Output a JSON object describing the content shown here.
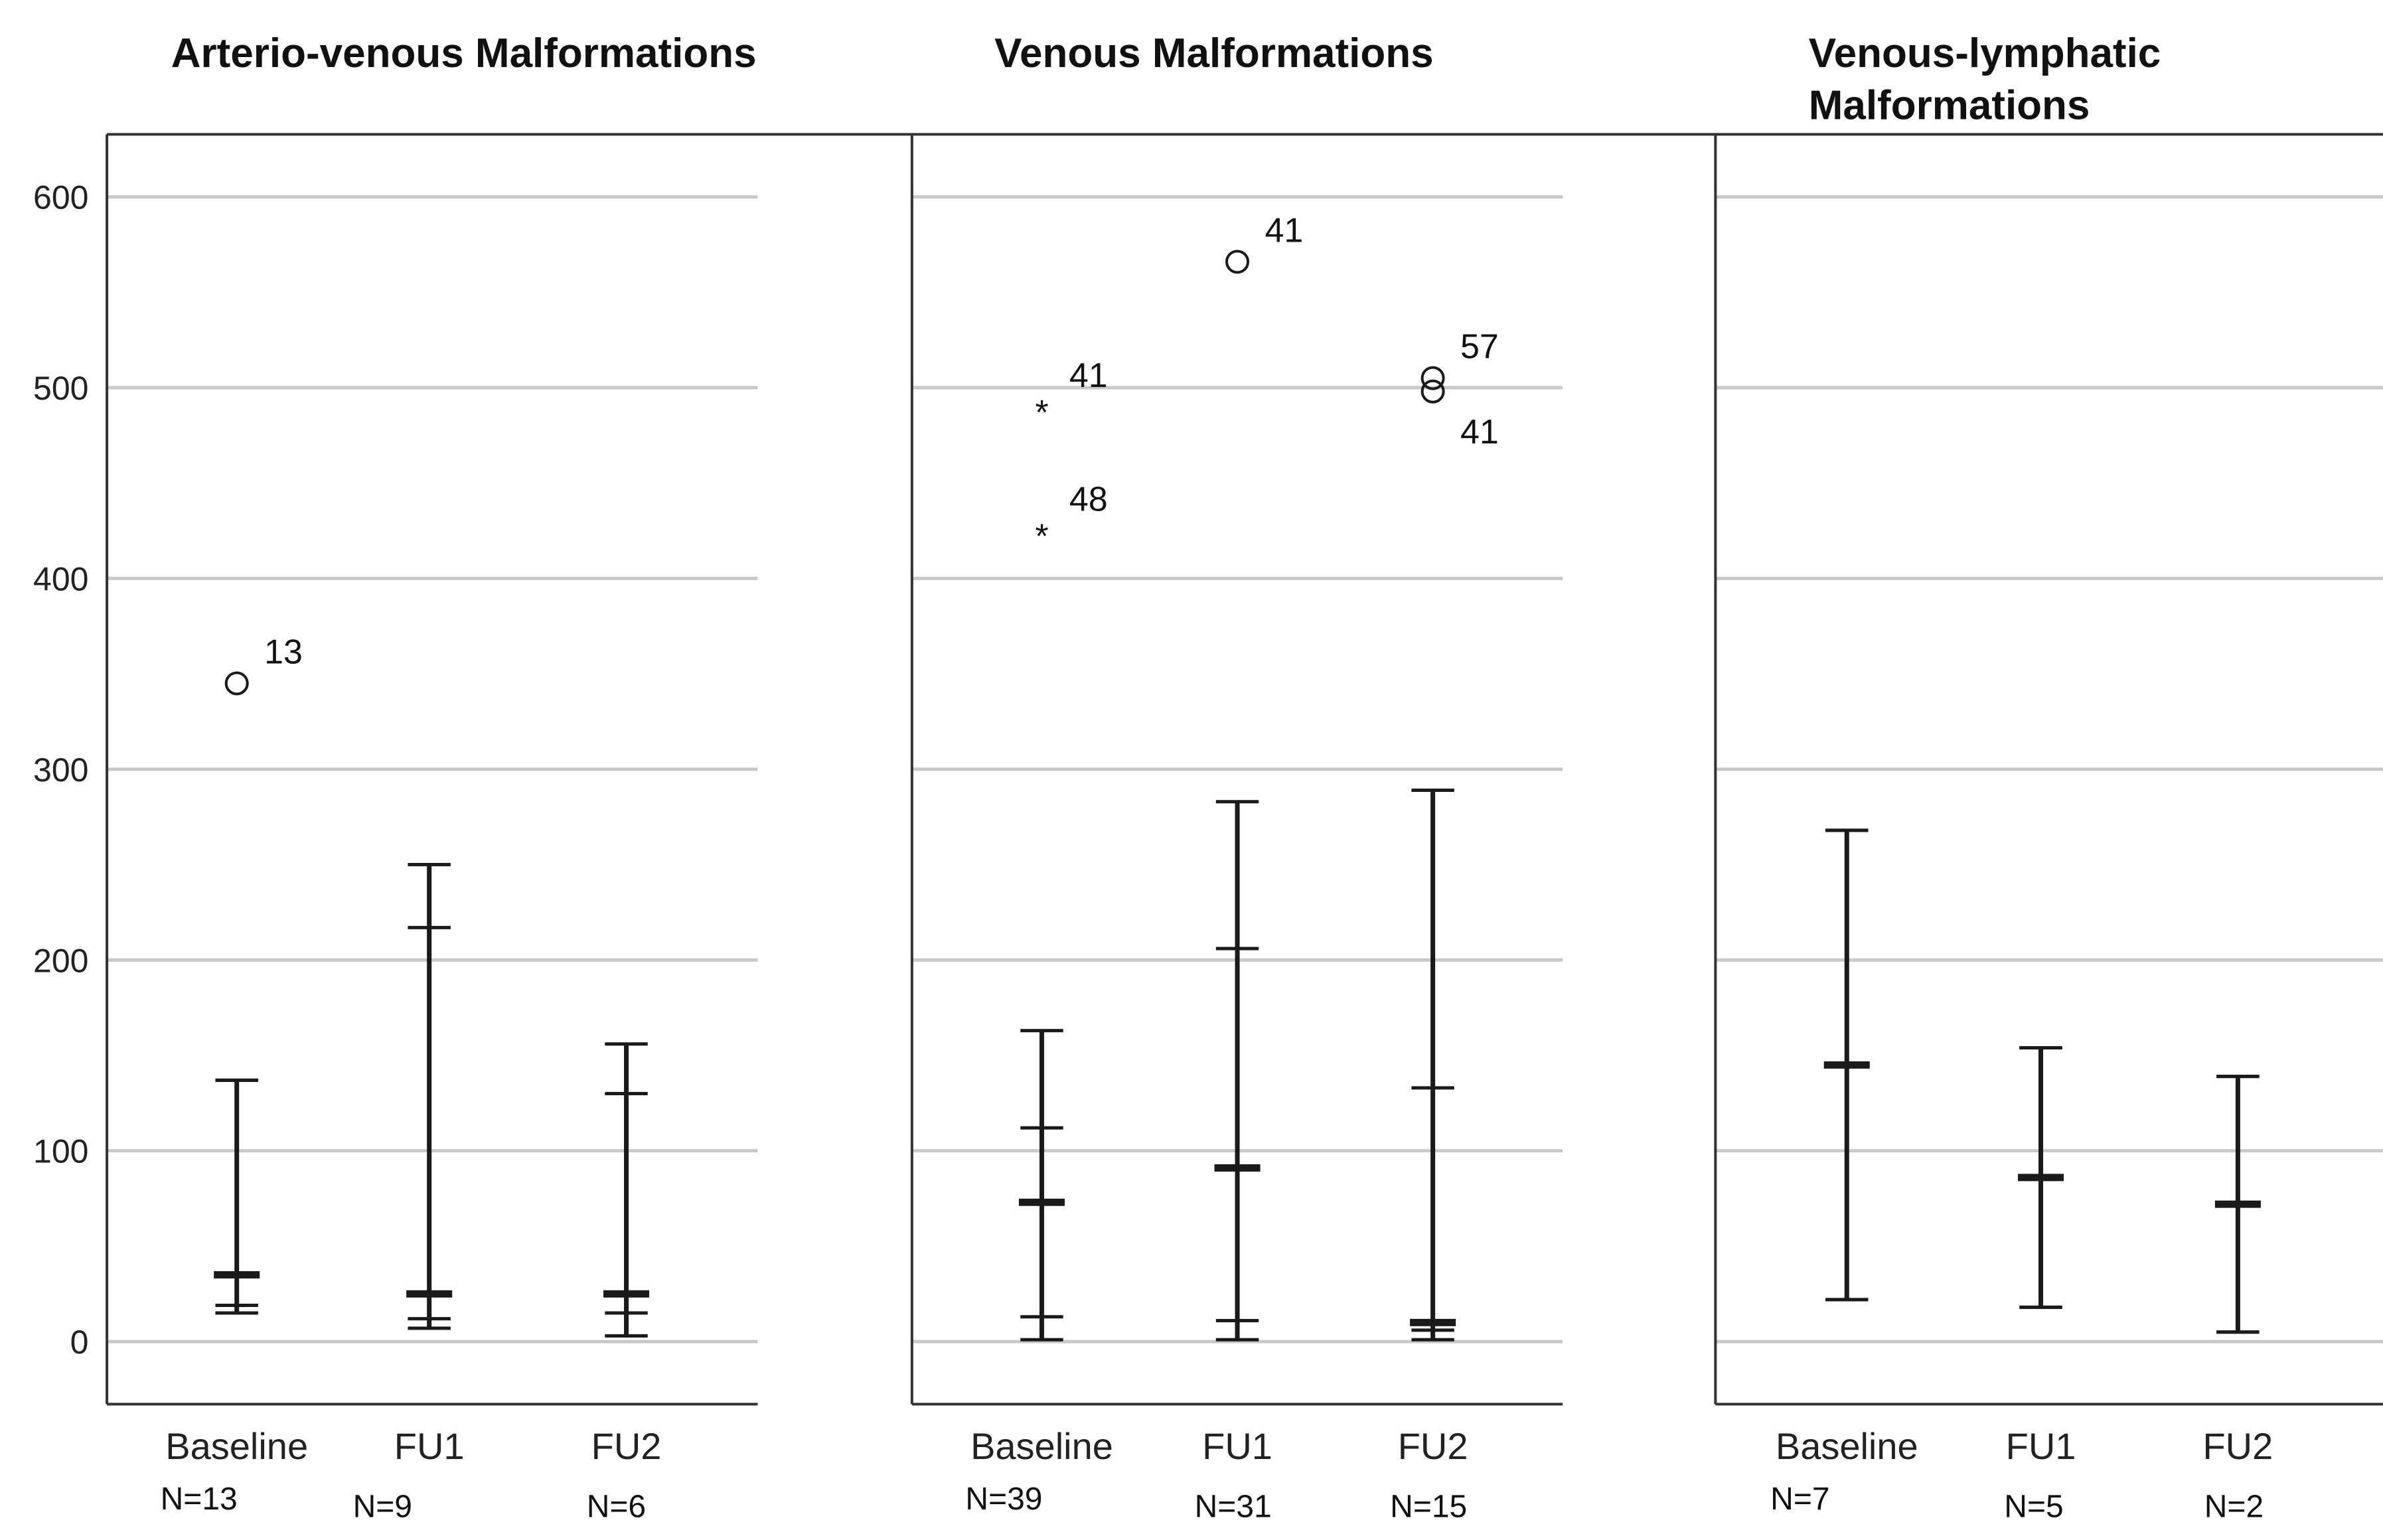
{
  "chart_data": {
    "type": "boxplot",
    "y_axis": {
      "ylim": [
        -30,
        630
      ],
      "ticks": [
        0,
        100,
        200,
        300,
        400,
        500,
        600
      ]
    },
    "panels": [
      {
        "title": [
          "Arterio-venous Malformations"
        ],
        "groups": [
          {
            "label": "Baseline",
            "n": "N=13",
            "whisker_low": 15,
            "q1": 19,
            "median": 35,
            "q3": 137,
            "whisker_high": 137,
            "outliers": [
              {
                "value": 345,
                "label": "13",
                "marker": "circle"
              }
            ]
          },
          {
            "label": "FU1",
            "n": "N=9",
            "whisker_low": 7,
            "q1": 12,
            "median": 25,
            "q3": 217,
            "whisker_high": 250,
            "outliers": []
          },
          {
            "label": "FU2",
            "n": "N=6",
            "whisker_low": 3,
            "q1": 15,
            "median": 25,
            "q3": 130,
            "whisker_high": 156,
            "outliers": []
          }
        ]
      },
      {
        "title": [
          "Venous Malformations"
        ],
        "groups": [
          {
            "label": "Baseline",
            "n": "N=39",
            "whisker_low": 1,
            "q1": 13,
            "median": 73,
            "q3": 112,
            "whisker_high": 163,
            "outliers": [
              {
                "value": 490,
                "label": "41",
                "marker": "star"
              },
              {
                "value": 425,
                "label": "48",
                "marker": "star"
              }
            ]
          },
          {
            "label": "FU1",
            "n": "N=31",
            "whisker_low": 1,
            "q1": 11,
            "median": 91,
            "q3": 206,
            "whisker_high": 283,
            "outliers": [
              {
                "value": 566,
                "label": "41",
                "marker": "circle"
              }
            ]
          },
          {
            "label": "FU2",
            "n": "N=15",
            "whisker_low": 1,
            "q1": 6,
            "median": 10,
            "q3": 133,
            "whisker_high": 289,
            "outliers": [
              {
                "value": 505,
                "label": "57",
                "marker": "circle"
              },
              {
                "value": 498,
                "label": "41",
                "marker": "circle"
              }
            ]
          }
        ]
      },
      {
        "title": [
          "Venous-lymphatic",
          "Malformations"
        ],
        "groups": [
          {
            "label": "Baseline",
            "n": "N=7",
            "whisker_low": 22,
            "q1": 22,
            "median": 145,
            "q3": 268,
            "whisker_high": 268,
            "outliers": []
          },
          {
            "label": "FU1",
            "n": "N=5",
            "whisker_low": 18,
            "q1": 18,
            "median": 86,
            "q3": 154,
            "whisker_high": 154,
            "outliers": []
          },
          {
            "label": "FU2",
            "n": "N=2",
            "whisker_low": 5,
            "q1": 5,
            "median": 72,
            "q3": 139,
            "whisker_high": 139,
            "outliers": []
          }
        ]
      }
    ]
  }
}
